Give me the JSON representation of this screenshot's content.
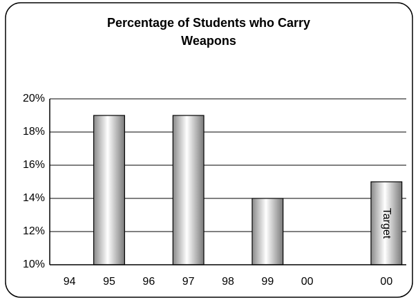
{
  "chart_data": {
    "type": "bar",
    "title": "Percentage of Students who Carry Weapons",
    "categories": [
      "94",
      "95",
      "96",
      "97",
      "98",
      "99",
      "00",
      null,
      "00"
    ],
    "values": [
      null,
      19,
      null,
      19,
      null,
      14,
      null,
      null,
      15
    ],
    "annotation": "Target",
    "ylim": [
      10,
      20
    ],
    "yticks": [
      {
        "value": 10,
        "label": "10%"
      },
      {
        "value": 12,
        "label": "12%"
      },
      {
        "value": 14,
        "label": "14%"
      },
      {
        "value": 16,
        "label": "16%"
      },
      {
        "value": 18,
        "label": "18%"
      },
      {
        "value": 20,
        "label": "20%"
      }
    ],
    "grid": true
  }
}
